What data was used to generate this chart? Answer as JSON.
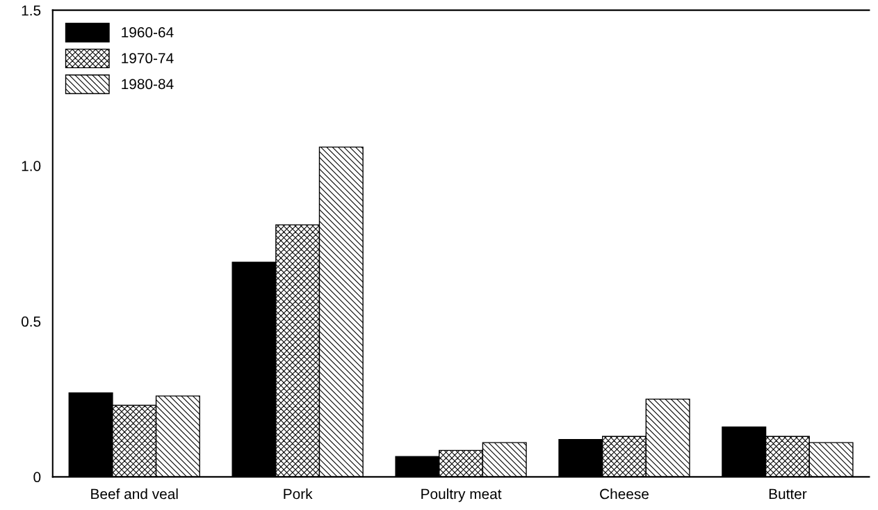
{
  "chart_data": {
    "type": "bar",
    "categories": [
      "Beef and veal",
      "Pork",
      "Poultry meat",
      "Cheese",
      "Butter"
    ],
    "series": [
      {
        "name": "1960-64",
        "color": "#000000",
        "values": [
          0.27,
          0.69,
          0.065,
          0.12,
          0.16
        ]
      },
      {
        "name": "1970-74",
        "color": "#000000",
        "values": [
          0.23,
          0.81,
          0.085,
          0.13,
          0.13
        ]
      },
      {
        "name": "1980-84",
        "color": "#000000",
        "values": [
          0.26,
          1.06,
          0.11,
          0.25,
          0.11
        ]
      }
    ],
    "ylim": [
      0,
      1.5
    ],
    "yticks": [
      0,
      0.5,
      {
        "value": 1,
        "label": "1.0"
      },
      1.5
    ],
    "grid": false,
    "legend": "top left"
  }
}
